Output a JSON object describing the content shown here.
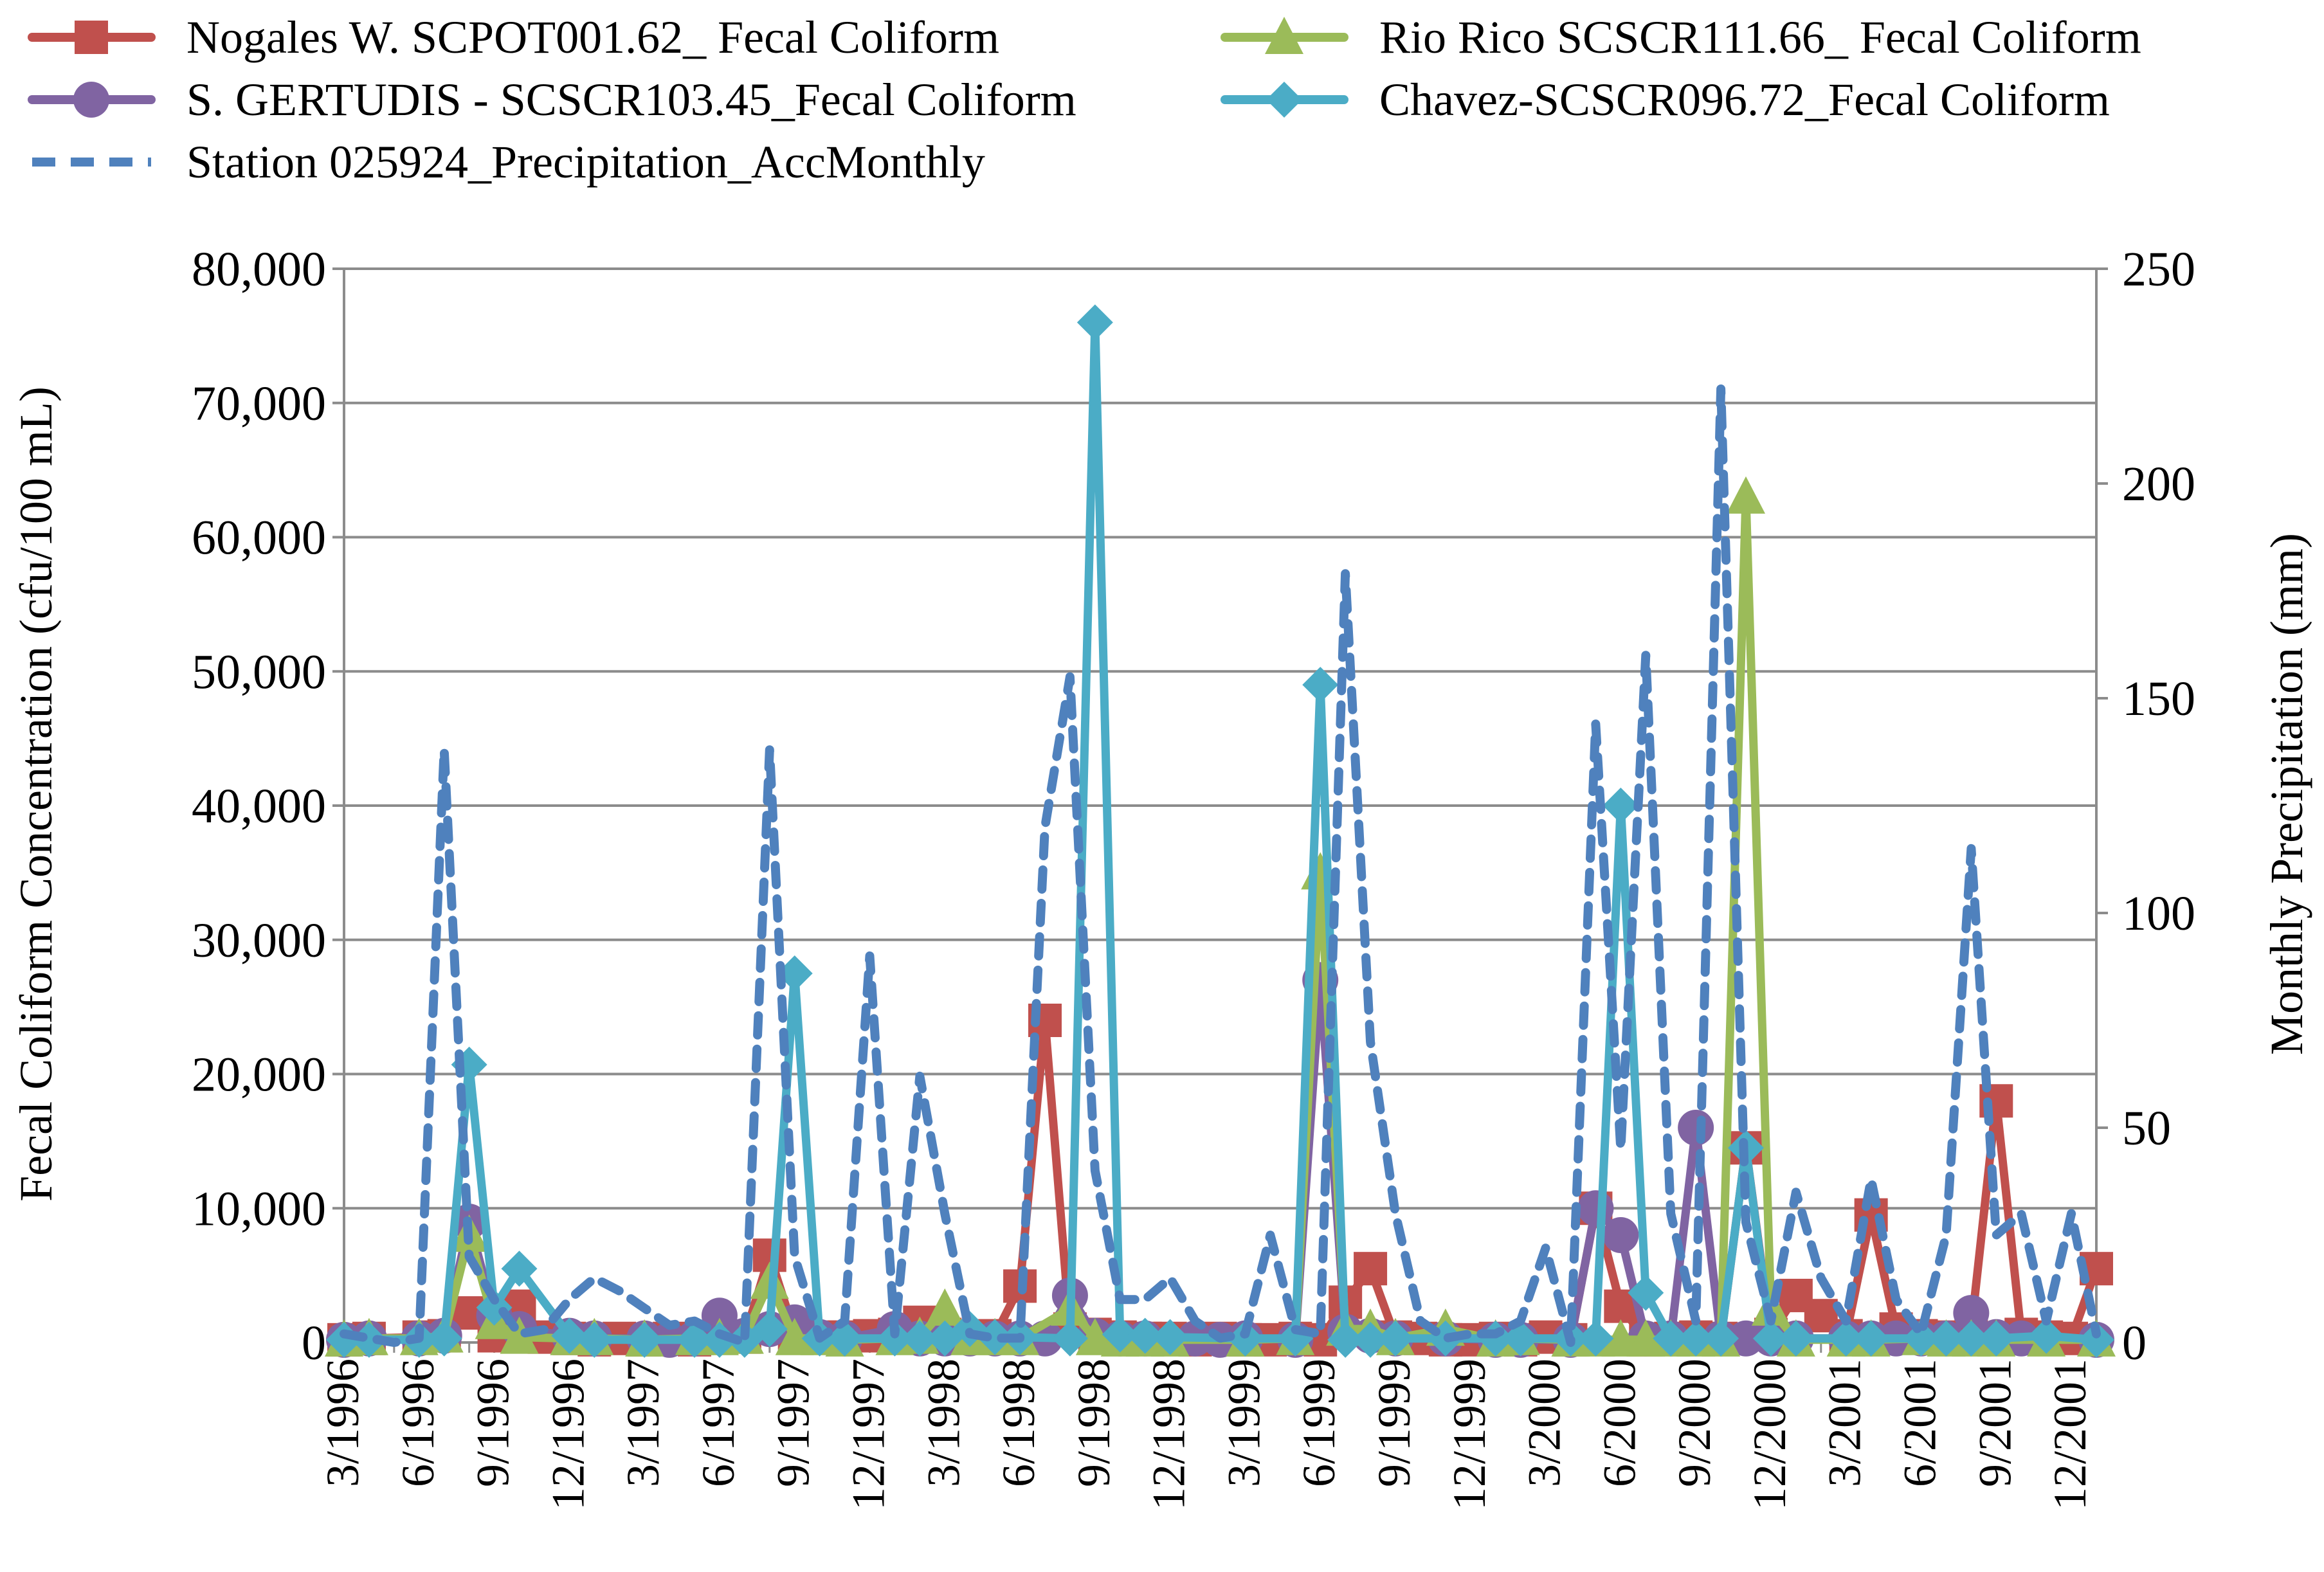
{
  "chart_data": {
    "type": "line",
    "title": "",
    "xlabel": "",
    "ylabel": "Fecal Coliform Concentration (cfu/100 mL)",
    "y2label": "Monthly Precipitation (mm)",
    "ylim": [
      0,
      80000
    ],
    "y2lim": [
      0,
      250
    ],
    "yticks": [
      "0",
      "10,000",
      "20,000",
      "30,000",
      "40,000",
      "50,000",
      "60,000",
      "70,000",
      "80,000"
    ],
    "y2ticks": [
      "0",
      "50",
      "100",
      "150",
      "200",
      "250"
    ],
    "x_range_months": [
      0,
      70
    ],
    "x_tick_labels": [
      "3/1996",
      "6/1996",
      "9/1996",
      "12/1996",
      "3/1997",
      "6/1997",
      "9/1997",
      "12/1997",
      "3/1998",
      "6/1998",
      "9/1998",
      "12/1998",
      "3/1999",
      "6/1999",
      "9/1999",
      "12/1999",
      "3/2000",
      "6/2000",
      "9/2000",
      "12/2000",
      "3/2001",
      "6/2001",
      "9/2001",
      "12/2001"
    ],
    "x_tick_positions_months": [
      0,
      3,
      6,
      9,
      12,
      15,
      18,
      21,
      24,
      27,
      30,
      33,
      36,
      39,
      42,
      45,
      48,
      51,
      54,
      57,
      60,
      63,
      66,
      69
    ],
    "grid": "horizontal",
    "legend_position": "top",
    "series": [
      {
        "name": "Nogales W. SCPOT001.62_ Fecal Coliform",
        "axis": "left",
        "color": "#c0504d",
        "marker": "square",
        "x": [
          0,
          1,
          3,
          4,
          5,
          6,
          7,
          8,
          9,
          10,
          11,
          12,
          13,
          14,
          15,
          16,
          17,
          18,
          19,
          20,
          21,
          22,
          23,
          24,
          25,
          26,
          27,
          28,
          29,
          30,
          31,
          32,
          33,
          34,
          35,
          36,
          37,
          38,
          39,
          40,
          41,
          42,
          43,
          44,
          45,
          46,
          47,
          48,
          49,
          50,
          51,
          52,
          53,
          54,
          55,
          56,
          57,
          58,
          59,
          60,
          61,
          62,
          63,
          64,
          65,
          66,
          67,
          68,
          69,
          70
        ],
        "values": [
          200,
          300,
          400,
          500,
          2200,
          500,
          2700,
          400,
          300,
          200,
          300,
          200,
          300,
          200,
          500,
          400,
          6500,
          700,
          400,
          400,
          500,
          600,
          1500,
          600,
          400,
          500,
          4200,
          24000,
          1000,
          600,
          400,
          300,
          300,
          200,
          300,
          200,
          200,
          300,
          200,
          3000,
          5500,
          400,
          300,
          200,
          200,
          300,
          200,
          400,
          200,
          10000,
          2700,
          200,
          300,
          400,
          300,
          14500,
          600,
          3500,
          2000,
          500,
          9500,
          1000,
          500,
          400,
          1000,
          18000,
          600,
          400,
          300,
          5500
        ]
      },
      {
        "name": "Rio Rico SCSCR111.66_ Fecal Coliform",
        "axis": "left",
        "color": "#9bbb59",
        "marker": "triangle",
        "x": [
          0,
          1,
          3,
          4,
          5,
          6,
          7,
          9,
          10,
          12,
          14,
          15,
          16,
          17,
          18,
          19,
          20,
          22,
          23,
          24,
          25,
          26,
          27,
          29,
          30,
          31,
          32,
          33,
          36,
          38,
          39,
          40,
          41,
          42,
          44,
          46,
          47,
          49,
          50,
          51,
          52,
          53,
          54,
          55,
          56,
          57,
          58,
          60,
          61,
          63,
          64,
          65,
          66,
          68,
          70
        ],
        "values": [
          200,
          300,
          300,
          500,
          8000,
          1500,
          400,
          300,
          300,
          200,
          300,
          300,
          400,
          4500,
          300,
          300,
          200,
          300,
          400,
          2500,
          300,
          300,
          300,
          2500,
          300,
          200,
          200,
          200,
          200,
          300,
          35000,
          1000,
          1000,
          300,
          1000,
          200,
          300,
          200,
          200,
          200,
          200,
          200,
          200,
          200,
          63000,
          2500,
          200,
          200,
          200,
          300,
          200,
          200,
          200,
          200,
          200
        ]
      },
      {
        "name": "S. GERTUDIS - SCSCR103.45_Fecal Coliform",
        "axis": "left",
        "color": "#8064a2",
        "marker": "circle",
        "x": [
          0,
          1,
          3,
          4,
          5,
          6,
          7,
          9,
          10,
          12,
          13,
          14,
          15,
          16,
          17,
          18,
          19,
          20,
          22,
          23,
          24,
          25,
          26,
          27,
          28,
          29,
          30,
          31,
          32,
          34,
          35,
          36,
          38,
          39,
          40,
          41,
          42,
          44,
          46,
          47,
          49,
          50,
          51,
          52,
          53,
          54,
          55,
          56,
          57,
          58,
          60,
          61,
          62,
          63,
          64,
          65,
          66,
          67,
          70
        ],
        "values": [
          200,
          300,
          300,
          500,
          9000,
          2000,
          1000,
          500,
          300,
          300,
          200,
          300,
          2000,
          500,
          1000,
          1500,
          400,
          300,
          1000,
          300,
          300,
          300,
          300,
          300,
          300,
          3500,
          500,
          300,
          300,
          300,
          200,
          300,
          200,
          27000,
          800,
          500,
          300,
          300,
          200,
          200,
          200,
          10000,
          8000,
          300,
          300,
          16000,
          300,
          300,
          300,
          300,
          300,
          300,
          300,
          300,
          300,
          2200,
          400,
          300,
          200
        ]
      },
      {
        "name": "Chavez-SCSCR096.72_Fecal Coliform",
        "axis": "left",
        "color": "#4bacc6",
        "marker": "diamond",
        "x": [
          0,
          1,
          3,
          4,
          5,
          6,
          7,
          9,
          10,
          12,
          14,
          15,
          16,
          17,
          18,
          19,
          20,
          22,
          23,
          24,
          25,
          26,
          27,
          29,
          30,
          31,
          32,
          33,
          36,
          38,
          39,
          40,
          41,
          42,
          44,
          46,
          47,
          49,
          50,
          51,
          52,
          53,
          54,
          55,
          56,
          57,
          58,
          60,
          61,
          63,
          64,
          65,
          66,
          68,
          70
        ],
        "values": [
          200,
          200,
          200,
          300,
          20700,
          2600,
          5500,
          500,
          200,
          200,
          200,
          200,
          200,
          1000,
          27500,
          300,
          300,
          300,
          300,
          300,
          1000,
          400,
          400,
          300,
          76000,
          600,
          500,
          400,
          300,
          300,
          49000,
          200,
          200,
          300,
          300,
          300,
          300,
          300,
          300,
          40000,
          3700,
          300,
          300,
          300,
          14500,
          300,
          300,
          300,
          300,
          300,
          300,
          300,
          300,
          500,
          200
        ]
      },
      {
        "name": "Station 025924_Precipitation_AccMonthly",
        "axis": "right",
        "color": "#4f81bd",
        "linestyle": "dashed",
        "x": [
          0,
          1,
          2,
          3,
          4,
          5,
          6,
          7,
          8,
          9,
          10,
          11,
          12,
          13,
          14,
          15,
          16,
          17,
          18,
          19,
          20,
          21,
          22,
          23,
          24,
          25,
          26,
          27,
          28,
          29,
          30,
          31,
          32,
          33,
          34,
          35,
          36,
          37,
          38,
          39,
          40,
          41,
          42,
          43,
          44,
          45,
          46,
          47,
          48,
          49,
          50,
          51,
          52,
          53,
          54,
          55,
          56,
          57,
          58,
          59,
          60,
          61,
          62,
          63,
          64,
          65,
          66,
          67,
          68,
          69,
          70
        ],
        "values": [
          2,
          1,
          0,
          1,
          138,
          20,
          10,
          2,
          3,
          10,
          15,
          12,
          8,
          4,
          5,
          2,
          0,
          138,
          20,
          1,
          5,
          90,
          2,
          62,
          30,
          2,
          1,
          1,
          120,
          155,
          40,
          10,
          10,
          15,
          5,
          1,
          2,
          25,
          3,
          2,
          179,
          70,
          30,
          5,
          1,
          2,
          2,
          5,
          22,
          0,
          144,
          45,
          160,
          30,
          5,
          222,
          28,
          5,
          35,
          15,
          5,
          38,
          10,
          2,
          25,
          115,
          25,
          30,
          5,
          30,
          2
        ]
      }
    ]
  }
}
